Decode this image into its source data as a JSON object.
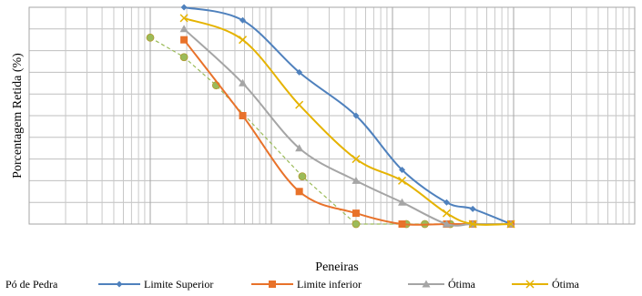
{
  "chart_data": {
    "type": "line",
    "xscale": "log",
    "xlim": [
      0.001,
      100
    ],
    "ylim": [
      0,
      100
    ],
    "grid": true,
    "xlabel": "Peneiras",
    "ylabel": "Porcentagem Retida (%)",
    "legend_position": "bottom",
    "series": [
      {
        "name": "Pó de Pedra",
        "style": "dashed",
        "marker": "circle",
        "color": "#9BBB59",
        "x": [
          0.01,
          0.019,
          0.035,
          0.18,
          0.5,
          1.3,
          1.85,
          3.0
        ],
        "y": [
          86,
          77,
          64,
          22,
          0,
          0,
          0,
          0
        ]
      },
      {
        "name": "Limite Superior",
        "style": "solid",
        "marker": "diamond",
        "color": "#4F81BD",
        "x": [
          0.019,
          0.058,
          0.17,
          0.5,
          1.2,
          2.8,
          4.6,
          9.5
        ],
        "y": [
          100,
          94,
          70,
          50,
          25,
          10,
          7,
          0
        ]
      },
      {
        "name": "Limite inferior",
        "style": "solid",
        "marker": "square",
        "color": "#E8722A",
        "x": [
          0.019,
          0.058,
          0.17,
          0.5,
          1.2,
          2.8,
          4.6,
          9.5
        ],
        "y": [
          85,
          50,
          15,
          5,
          0,
          0,
          0,
          0
        ]
      },
      {
        "name": "Ótima",
        "style": "solid",
        "marker": "triangle",
        "color": "#A5A5A5",
        "x": [
          0.019,
          0.058,
          0.17,
          0.5,
          1.2,
          2.8,
          4.6,
          9.5
        ],
        "y": [
          90,
          65,
          35,
          20,
          10,
          0,
          0,
          0
        ]
      },
      {
        "name": "Ótima",
        "style": "solid",
        "marker": "x",
        "color": "#E5B300",
        "x": [
          0.019,
          0.058,
          0.17,
          0.5,
          1.2,
          2.8,
          4.6,
          9.5
        ],
        "y": [
          95,
          85,
          55,
          30,
          20,
          5,
          0,
          0
        ]
      }
    ]
  }
}
